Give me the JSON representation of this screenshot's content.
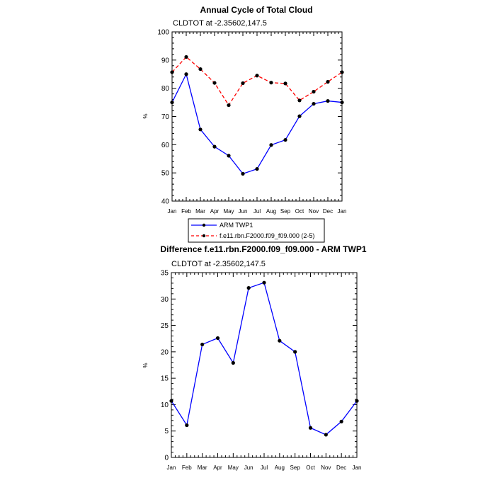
{
  "chart_data": [
    {
      "type": "line",
      "title": "Annual Cycle of Total Cloud",
      "subtitle": "CLDTOT at -2.35602,147.5",
      "ylabel": "%",
      "xlabel": "",
      "categories": [
        "Jan",
        "Feb",
        "Mar",
        "Apr",
        "May",
        "Jun",
        "Jul",
        "Aug",
        "Sep",
        "Oct",
        "Nov",
        "Dec",
        "Jan"
      ],
      "ylim": [
        40,
        100
      ],
      "yticks": [
        "40",
        "50",
        "60",
        "70",
        "80",
        "90",
        "100"
      ],
      "series": [
        {
          "name": "ARM TWP1",
          "color": "#0000ff",
          "dash": "solid",
          "values": [
            75.0,
            85.0,
            65.4,
            59.3,
            56.1,
            49.7,
            51.4,
            59.9,
            61.7,
            70.1,
            74.5,
            75.5,
            75.0
          ]
        },
        {
          "name": "f.e11.rbn.F2000.f09_f09.000 (2-5)",
          "color": "#ff0000",
          "dash": "dashed",
          "values": [
            85.7,
            91.1,
            86.8,
            81.9,
            74.0,
            81.8,
            84.5,
            82.0,
            81.7,
            75.7,
            78.8,
            82.3,
            85.7
          ]
        }
      ],
      "grid": false,
      "legend": "bottom"
    },
    {
      "type": "line",
      "title": "Difference f.e11.rbn.F2000.f09_f09.000 - ARM TWP1",
      "subtitle": "CLDTOT at -2.35602,147.5",
      "ylabel": "%",
      "xlabel": "",
      "categories": [
        "Jan",
        "Feb",
        "Mar",
        "Apr",
        "May",
        "Jun",
        "Jul",
        "Aug",
        "Sep",
        "Oct",
        "Nov",
        "Dec",
        "Jan"
      ],
      "ylim": [
        0,
        35
      ],
      "yticks": [
        "0",
        "5",
        "10",
        "15",
        "20",
        "25",
        "30",
        "35"
      ],
      "series": [
        {
          "name": "",
          "color": "#0000ff",
          "dash": "solid",
          "values": [
            10.7,
            6.1,
            21.4,
            22.6,
            17.9,
            32.1,
            33.1,
            22.1,
            20.0,
            5.6,
            4.3,
            6.8,
            10.7
          ]
        }
      ],
      "grid": false,
      "legend": "none"
    }
  ]
}
